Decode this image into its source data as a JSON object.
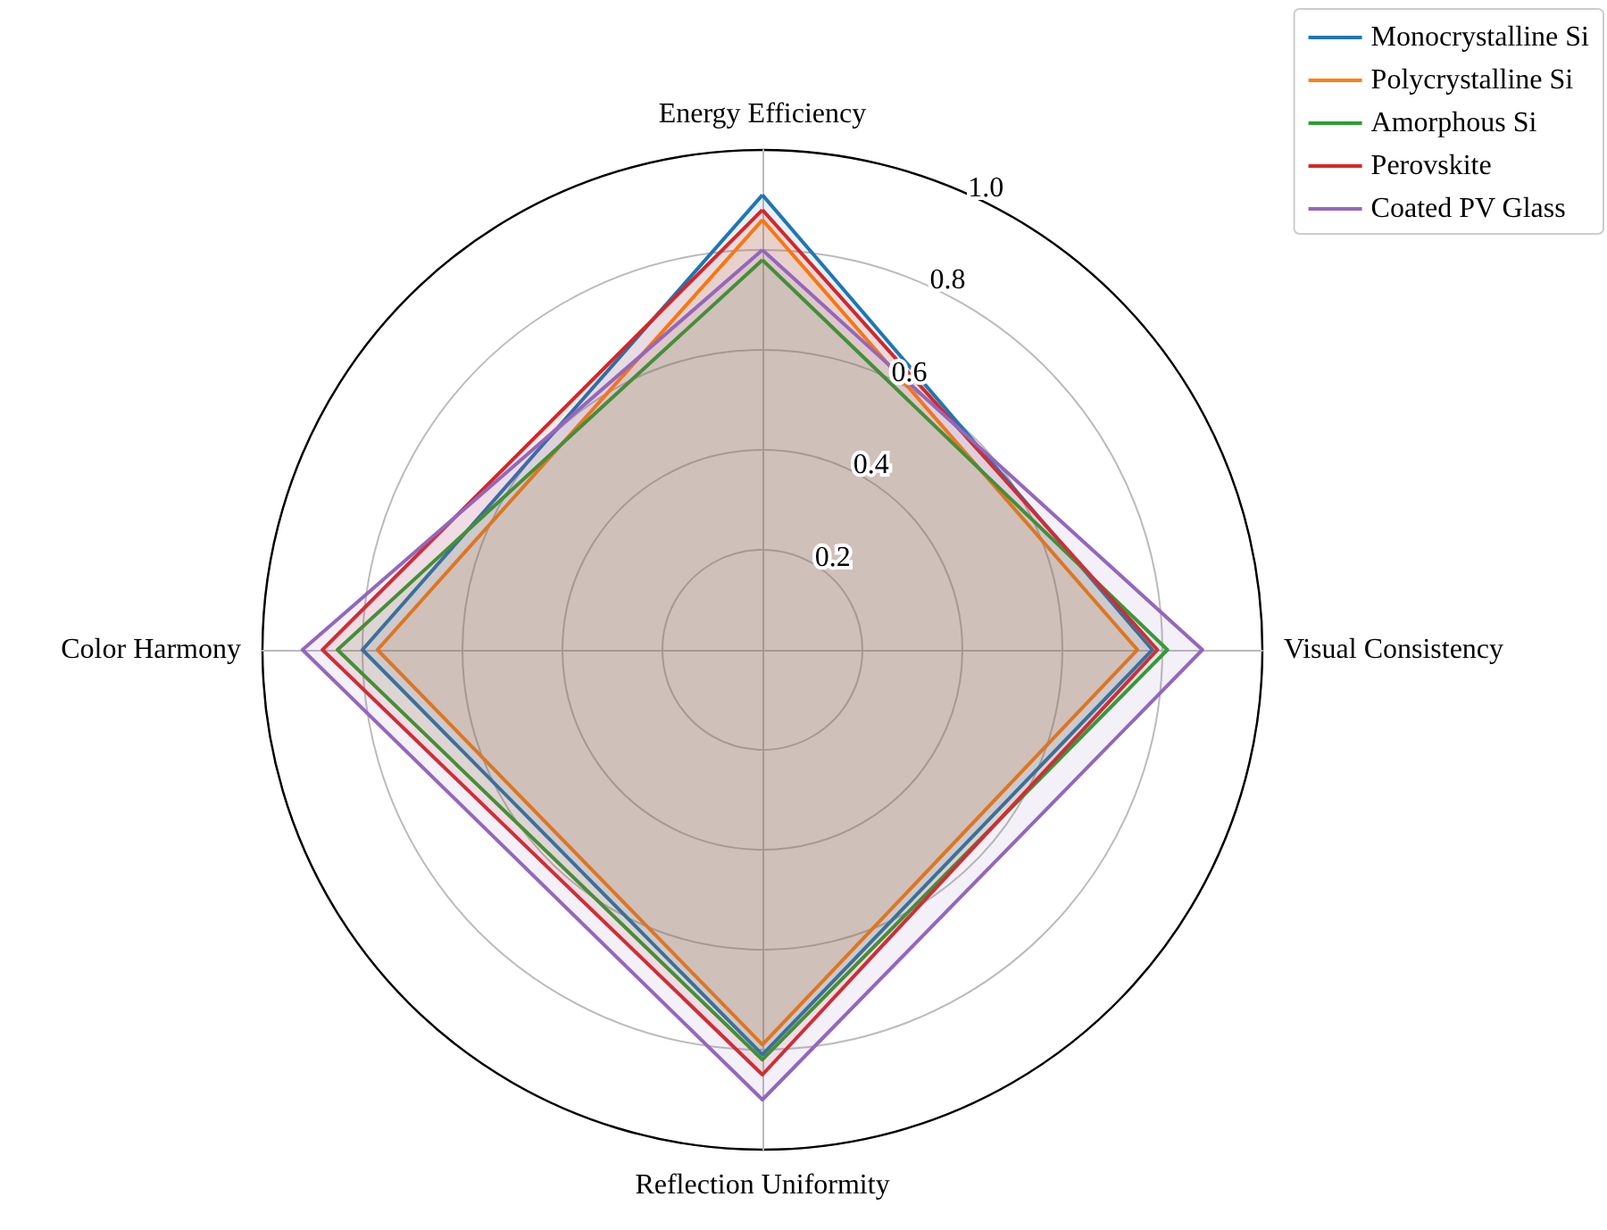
{
  "chart_data": {
    "type": "radar",
    "categories": [
      "Energy Efficiency",
      "Visual Consistency",
      "Reflection Uniformity",
      "Color Harmony"
    ],
    "series": [
      {
        "name": "Monocrystalline Si",
        "color": "#1f77b4",
        "values": [
          0.91,
          0.78,
          0.81,
          0.8
        ]
      },
      {
        "name": "Polycrystalline Si",
        "color": "#ff7f0e",
        "values": [
          0.86,
          0.75,
          0.79,
          0.77
        ]
      },
      {
        "name": "Amorphous Si",
        "color": "#2ca02c",
        "values": [
          0.78,
          0.81,
          0.82,
          0.85
        ]
      },
      {
        "name": "Perovskite",
        "color": "#d62728",
        "values": [
          0.88,
          0.79,
          0.85,
          0.88
        ]
      },
      {
        "name": "Coated PV Glass",
        "color": "#9467bd",
        "values": [
          0.8,
          0.88,
          0.9,
          0.92
        ]
      }
    ],
    "ylim": [
      0,
      1
    ],
    "yticks": [
      0.2,
      0.4,
      0.6,
      0.8,
      {
        "value": 1.0,
        "label": "1.0"
      }
    ],
    "grid": true,
    "legend": "top right"
  }
}
